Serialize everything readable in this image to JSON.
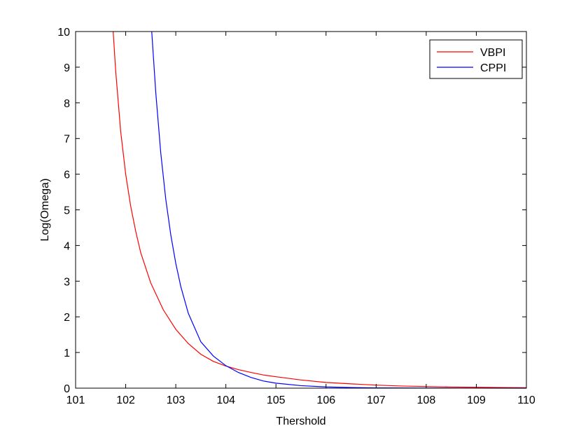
{
  "chart_data": {
    "type": "line",
    "title": "",
    "xlabel": "Thershold",
    "ylabel": "Log(Omega)",
    "xlim": [
      101,
      110
    ],
    "ylim": [
      0,
      10
    ],
    "grid": false,
    "legend_position": "top-right",
    "x_ticks": [
      "101",
      "102",
      "103",
      "104",
      "105",
      "106",
      "107",
      "108",
      "109",
      "110"
    ],
    "y_ticks": [
      "0",
      "1",
      "2",
      "3",
      "4",
      "5",
      "6",
      "7",
      "8",
      "9",
      "10"
    ],
    "series": [
      {
        "name": "VBPI",
        "color": "#ff0000",
        "x": [
          101.75,
          101.8,
          101.9,
          102.0,
          102.1,
          102.2,
          102.3,
          102.5,
          102.75,
          103.0,
          103.25,
          103.5,
          103.75,
          104.0,
          104.25,
          104.5,
          104.75,
          105.0,
          105.5,
          106.0,
          106.5,
          107.0,
          107.5,
          108.0,
          108.5,
          109.0,
          109.5,
          110.0
        ],
        "y": [
          10.0,
          8.9,
          7.2,
          6.0,
          5.1,
          4.4,
          3.8,
          2.95,
          2.2,
          1.65,
          1.25,
          0.95,
          0.75,
          0.62,
          0.52,
          0.44,
          0.37,
          0.32,
          0.23,
          0.16,
          0.12,
          0.085,
          0.06,
          0.045,
          0.033,
          0.025,
          0.018,
          0.013
        ]
      },
      {
        "name": "CPPI",
        "color": "#0000ff",
        "x": [
          102.52,
          102.6,
          102.7,
          102.8,
          102.9,
          103.0,
          103.1,
          103.25,
          103.5,
          103.75,
          104.0,
          104.25,
          104.5,
          104.75,
          105.0,
          105.5,
          106.0,
          106.5,
          107.0,
          107.5,
          108.0,
          109.0,
          110.0
        ],
        "y": [
          10.0,
          8.3,
          6.6,
          5.3,
          4.3,
          3.5,
          2.85,
          2.1,
          1.3,
          0.9,
          0.63,
          0.44,
          0.3,
          0.2,
          0.14,
          0.07,
          0.035,
          0.018,
          0.009,
          0.005,
          0.003,
          0.001,
          0.0
        ]
      }
    ]
  }
}
